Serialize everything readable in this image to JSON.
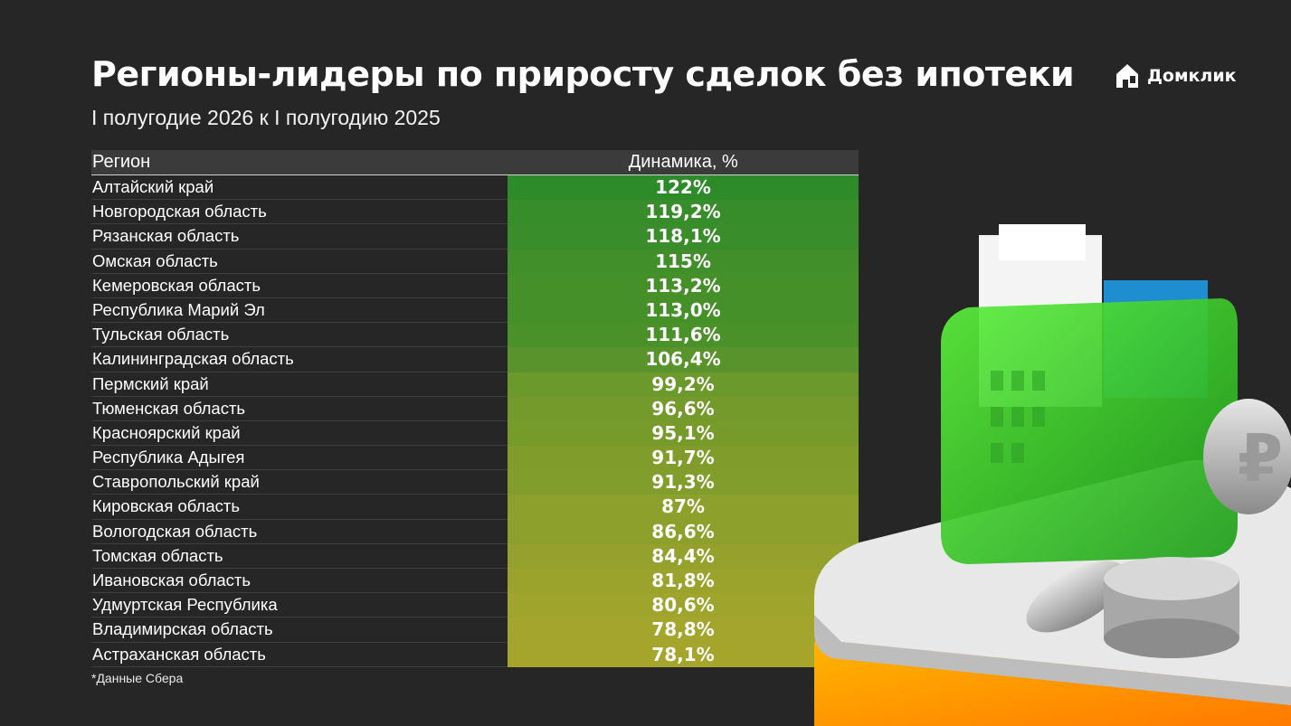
{
  "header": {
    "title": "Регионы-лидеры по приросту сделок без ипотеки",
    "subtitle": "I полугодие 2026 к I полугодию 2025",
    "logo_text": "Домклик"
  },
  "table": {
    "col_region": "Регион",
    "col_dynamics": "Динамика, %"
  },
  "chart_data": {
    "type": "table",
    "columns": [
      "Регион",
      "Динамика, %"
    ],
    "rows": [
      {
        "region": "Алтайский край",
        "value": 122,
        "label": "122%"
      },
      {
        "region": "Новгородская область",
        "value": 119.2,
        "label": "119,2%"
      },
      {
        "region": "Рязанская область",
        "value": 118.1,
        "label": "118,1%"
      },
      {
        "region": "Омская область",
        "value": 115,
        "label": "115%"
      },
      {
        "region": "Кемеровская область",
        "value": 113.2,
        "label": "113,2%"
      },
      {
        "region": "Республика Марий Эл",
        "value": 113.0,
        "label": "113,0%"
      },
      {
        "region": "Тульская область",
        "value": 111.6,
        "label": "111,6%"
      },
      {
        "region": "Калининградская область",
        "value": 106.4,
        "label": "106,4%"
      },
      {
        "region": "Пермский край",
        "value": 99.2,
        "label": "99,2%"
      },
      {
        "region": "Тюменская область",
        "value": 96.6,
        "label": "96,6%"
      },
      {
        "region": "Красноярский край",
        "value": 95.1,
        "label": "95,1%"
      },
      {
        "region": "Республика Адыгея",
        "value": 91.7,
        "label": "91,7%"
      },
      {
        "region": "Ставропольский край",
        "value": 91.3,
        "label": "91,3%"
      },
      {
        "region": "Кировская область",
        "value": 87,
        "label": "87%"
      },
      {
        "region": "Вологодская область",
        "value": 86.6,
        "label": "86,6%"
      },
      {
        "region": "Томская область",
        "value": 84.4,
        "label": "84,4%"
      },
      {
        "region": "Ивановская область",
        "value": 81.8,
        "label": "81,8%"
      },
      {
        "region": "Удмуртская Республика",
        "value": 80.6,
        "label": "80,6%"
      },
      {
        "region": "Владимирская область",
        "value": 78.8,
        "label": "78,8%"
      },
      {
        "region": "Астраханская область",
        "value": 78.1,
        "label": "78,1%"
      }
    ],
    "color_scale": {
      "high": "#2e8b2a",
      "low": "#a5a52c"
    }
  },
  "footnote": "*Данные Сбера",
  "colors": {
    "background": "#262626",
    "header_row": "#3b3b3b",
    "brand_green": "#3cd62a",
    "orange": "#ff9a00"
  }
}
